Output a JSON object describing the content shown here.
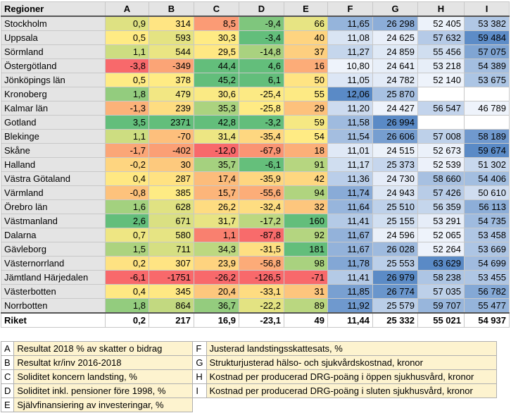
{
  "table": {
    "headers": [
      "Regioner",
      "A",
      "B",
      "C",
      "D",
      "E",
      "F",
      "G",
      "H",
      "I"
    ],
    "rows": [
      {
        "name": "Stockholm",
        "A": "0,9",
        "B": "314",
        "C": "8,5",
        "D": "-9,4",
        "E": "66",
        "F": "11,65",
        "G": "26 298",
        "H": "52 405",
        "I": "53 382"
      },
      {
        "name": "Uppsala",
        "A": "0,5",
        "B": "593",
        "C": "30,3",
        "D": "-3,4",
        "E": "40",
        "F": "11,08",
        "G": "24 625",
        "H": "57 632",
        "I": "59 484"
      },
      {
        "name": "Sörmland",
        "A": "1,1",
        "B": "544",
        "C": "29,5",
        "D": "-14,8",
        "E": "37",
        "F": "11,27",
        "G": "24 859",
        "H": "55 456",
        "I": "57 075"
      },
      {
        "name": "Östergötland",
        "A": "-3,8",
        "B": "-349",
        "C": "44,4",
        "D": "4,6",
        "E": "16",
        "F": "10,80",
        "G": "24 641",
        "H": "53 218",
        "I": "54 389"
      },
      {
        "name": "Jönköpings län",
        "A": "0,5",
        "B": "378",
        "C": "45,2",
        "D": "6,1",
        "E": "50",
        "F": "11,05",
        "G": "24 782",
        "H": "52 140",
        "I": "53 675"
      },
      {
        "name": "Kronoberg",
        "A": "1,8",
        "B": "479",
        "C": "30,6",
        "D": "-25,4",
        "E": "55",
        "F": "12,06",
        "G": "25 870",
        "H": "",
        "I": ""
      },
      {
        "name": "Kalmar län",
        "A": "-1,3",
        "B": "239",
        "C": "35,3",
        "D": "-25,8",
        "E": "29",
        "F": "11,20",
        "G": "24 427",
        "H": "56 547",
        "I": "46 789"
      },
      {
        "name": "Gotland",
        "A": "3,5",
        "B": "2371",
        "C": "42,8",
        "D": "-3,2",
        "E": "59",
        "F": "11,58",
        "G": "26 994",
        "H": "",
        "I": ""
      },
      {
        "name": "Blekinge",
        "A": "1,1",
        "B": "-70",
        "C": "31,4",
        "D": "-35,4",
        "E": "54",
        "F": "11,54",
        "G": "26 606",
        "H": "57 008",
        "I": "58 189"
      },
      {
        "name": "Skåne",
        "A": "-1,7",
        "B": "-402",
        "C": "-12,0",
        "D": "-67,9",
        "E": "18",
        "F": "11,01",
        "G": "24 515",
        "H": "52 673",
        "I": "59 674"
      },
      {
        "name": "Halland",
        "A": "-0,2",
        "B": "30",
        "C": "35,7",
        "D": "-6,1",
        "E": "91",
        "F": "11,17",
        "G": "25 373",
        "H": "52 539",
        "I": "51 302"
      },
      {
        "name": "Västra Götaland",
        "A": "0,4",
        "B": "287",
        "C": "17,4",
        "D": "-35,9",
        "E": "42",
        "F": "11,36",
        "G": "24 730",
        "H": "58 660",
        "I": "54 406"
      },
      {
        "name": "Värmland",
        "A": "-0,8",
        "B": "385",
        "C": "15,7",
        "D": "-55,6",
        "E": "94",
        "F": "11,74",
        "G": "24 943",
        "H": "57 426",
        "I": "50 610"
      },
      {
        "name": "Örebro län",
        "A": "1,6",
        "B": "628",
        "C": "26,2",
        "D": "-32,4",
        "E": "32",
        "F": "11,64",
        "G": "25 510",
        "H": "56 359",
        "I": "56 113"
      },
      {
        "name": "Västmanland",
        "A": "2,6",
        "B": "671",
        "C": "31,7",
        "D": "-17,2",
        "E": "160",
        "F": "11,41",
        "G": "25 155",
        "H": "53 291",
        "I": "54 735"
      },
      {
        "name": "Dalarna",
        "A": "0,7",
        "B": "580",
        "C": "1,1",
        "D": "-87,8",
        "E": "92",
        "F": "11,67",
        "G": "24 596",
        "H": "52 065",
        "I": "53 458"
      },
      {
        "name": "Gävleborg",
        "A": "1,5",
        "B": "711",
        "C": "34,3",
        "D": "-31,5",
        "E": "181",
        "F": "11,67",
        "G": "26 028",
        "H": "52 264",
        "I": "53 669"
      },
      {
        "name": "Västernorrland",
        "A": "0,2",
        "B": "307",
        "C": "23,9",
        "D": "-56,8",
        "E": "98",
        "F": "11,78",
        "G": "25 553",
        "H": "63 629",
        "I": "54 699"
      },
      {
        "name": "Jämtland Härjedalen",
        "A": "-6,1",
        "B": "-1751",
        "C": "-26,2",
        "D": "-126,5",
        "E": "-71",
        "F": "11,41",
        "G": "26 979",
        "H": "58 238",
        "I": "53 455"
      },
      {
        "name": "Västerbotten",
        "A": "0,4",
        "B": "345",
        "C": "20,4",
        "D": "-33,1",
        "E": "31",
        "F": "11,85",
        "G": "26 774",
        "H": "57 035",
        "I": "56 782"
      },
      {
        "name": "Norrbotten",
        "A": "1,8",
        "B": "864",
        "C": "36,7",
        "D": "-22,2",
        "E": "89",
        "F": "11,92",
        "G": "25 579",
        "H": "59 707",
        "I": "55 477"
      }
    ],
    "total": {
      "name": "Riket",
      "A": "0,2",
      "B": "217",
      "C": "16,9",
      "D": "-23,1",
      "E": "49",
      "F": "11,44",
      "G": "25 332",
      "H": "55 021",
      "I": "54 937"
    }
  },
  "legend": {
    "left": [
      {
        "code": "A",
        "text": "Resultat 2018 % av skatter o bidrag"
      },
      {
        "code": "B",
        "text": "Resultat kr/inv 2016-2018"
      },
      {
        "code": "C",
        "text": "Soliditet koncern landsting, %"
      },
      {
        "code": "D",
        "text": "Soliditet inkl. pensioner före 1998, %"
      },
      {
        "code": "E",
        "text": "Självfinansiering av investeringar, %"
      }
    ],
    "right": [
      {
        "code": "F",
        "text": "Justerad landstingsskattesats, %"
      },
      {
        "code": "G",
        "text": "Strukturjusterad hälso- och sjukvårdskostnad, kronor"
      },
      {
        "code": "H",
        "text": "Kostnad per producerad DRG-poäng i öppen sjukhusvård, kronor"
      },
      {
        "code": "I",
        "text": "Kostnad per producerad DRG-poäng i sluten sjukhusvård, kronor"
      },
      {
        "code": "",
        "text": ""
      }
    ]
  },
  "colors": {
    "ryg_green": "#63be7b",
    "ryg_yellow": "#ffeb84",
    "ryg_red": "#f8696b",
    "blue_scale_light": "#ffffff",
    "blue_scale_dark": "#5a8ac6",
    "header_bg": "#e4e4e4",
    "legend_bg": "#fdf3cf"
  }
}
